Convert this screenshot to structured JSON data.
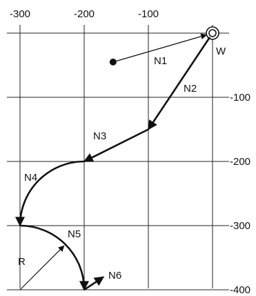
{
  "grid": {
    "x_ticks": [
      -300,
      -200,
      -100
    ],
    "y_ticks": [
      -100,
      -200,
      -300,
      -400
    ],
    "x_tick_labels": [
      "-300",
      "-200",
      "-100"
    ],
    "y_tick_labels": [
      "-100",
      "-200",
      "-300",
      "-400"
    ]
  },
  "points": {
    "start": [
      -155,
      -45
    ],
    "W": [
      0,
      0
    ],
    "P2": [
      -100,
      -150
    ],
    "P3": [
      -200,
      -200
    ],
    "P4": [
      -300,
      -300
    ],
    "P5": [
      -200,
      -400
    ],
    "N6_end": [
      -170,
      -380
    ]
  },
  "arc_radius": 100,
  "labels": {
    "W": "W",
    "N1": "N1",
    "N2": "N2",
    "N3": "N3",
    "N4": "N4",
    "N5": "N5",
    "N6": "N6",
    "R": "R"
  },
  "colors": {
    "line": "#111111",
    "grid": "#222222",
    "background": "#ffffff"
  }
}
